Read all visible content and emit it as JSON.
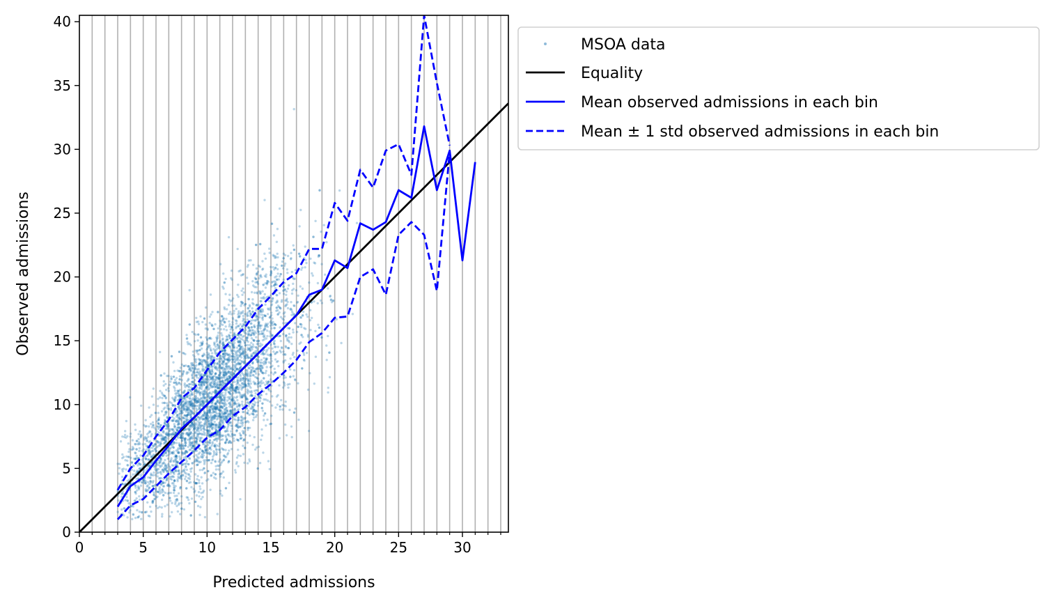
{
  "chart_data": {
    "type": "scatter",
    "title": "",
    "xlabel": "Predicted admissions",
    "ylabel": "Observed admissions",
    "xlim": [
      0,
      33.6
    ],
    "ylim": [
      0,
      40.5
    ],
    "xticks": [
      0,
      5,
      10,
      15,
      20,
      25,
      30
    ],
    "yticks": [
      0,
      5,
      10,
      15,
      20,
      25,
      30,
      35,
      40
    ],
    "vertical_gridlines": [
      1,
      2,
      3,
      4,
      5,
      6,
      7,
      8,
      9,
      10,
      11,
      12,
      13,
      14,
      15,
      16,
      17,
      18,
      19,
      20,
      21,
      22,
      23,
      24,
      25,
      26,
      27,
      28,
      29,
      30,
      31,
      32,
      33
    ],
    "legend_position": "outside-right-top",
    "colors": {
      "scatter": "#1f77b4",
      "equality": "#000000",
      "mean": "#0000ff",
      "grid": "#b0b0b0"
    },
    "series": [
      {
        "name": "MSOA data",
        "kind": "scatter",
        "n_points": 4500,
        "description_of_distribution": "bin centers 3-31, observed values near the equality line with spread roughly proportional to sqrt(x)"
      },
      {
        "name": "Equality",
        "kind": "line",
        "x": [
          0,
          33.6
        ],
        "y": [
          0,
          33.6
        ]
      },
      {
        "name": "Mean observed admissions in each bin",
        "kind": "line",
        "x": [
          3,
          4,
          5,
          6,
          7,
          8,
          9,
          10,
          11,
          12,
          13,
          14,
          15,
          16,
          17,
          18,
          19,
          20,
          21,
          22,
          23,
          24,
          25,
          26,
          27,
          28,
          29,
          30,
          31
        ],
        "y": [
          2.0,
          3.6,
          4.3,
          5.6,
          6.8,
          8.1,
          9.0,
          10.0,
          11.0,
          12.0,
          13.0,
          14.0,
          15.0,
          16.0,
          17.0,
          18.6,
          19.0,
          21.3,
          20.7,
          24.2,
          23.7,
          24.3,
          26.8,
          26.2,
          31.8,
          26.8,
          29.9,
          21.3,
          29.0
        ]
      },
      {
        "name": "Mean + 1 std observed admissions in each bin",
        "kind": "line-dashed",
        "x": [
          3,
          4,
          5,
          6,
          7,
          8,
          9,
          10,
          11,
          12,
          13,
          14,
          15,
          16,
          17,
          18,
          19,
          20,
          21,
          22,
          23,
          24,
          25,
          26,
          27,
          28,
          29
        ],
        "y": [
          3.3,
          5.0,
          6.0,
          7.5,
          8.8,
          10.5,
          11.3,
          12.7,
          14.1,
          15.1,
          16.1,
          17.5,
          18.5,
          19.6,
          20.3,
          22.2,
          22.2,
          25.8,
          24.4,
          28.4,
          27.0,
          29.9,
          30.4,
          28.0,
          40.5,
          35.2,
          30.3
        ]
      },
      {
        "name": "Mean - 1 std observed admissions in each bin",
        "kind": "line-dashed",
        "x": [
          3,
          4,
          5,
          6,
          7,
          8,
          9,
          10,
          11,
          12,
          13,
          14,
          15,
          16,
          17,
          18,
          19,
          20,
          21,
          22,
          23,
          24,
          25,
          26,
          27,
          28,
          29
        ],
        "y": [
          1.0,
          2.1,
          2.6,
          3.6,
          4.6,
          5.5,
          6.4,
          7.4,
          8.0,
          9.1,
          9.8,
          10.8,
          11.6,
          12.5,
          13.5,
          14.9,
          15.6,
          16.8,
          16.9,
          20.0,
          20.6,
          18.6,
          23.3,
          24.3,
          23.3,
          18.9,
          29.8
        ]
      }
    ],
    "legend": [
      {
        "label": "MSOA data",
        "marker": "scatter"
      },
      {
        "label": "Equality",
        "marker": "line-black"
      },
      {
        "label": "Mean observed admissions in each bin",
        "marker": "line-blue"
      },
      {
        "label": "Mean ± 1 std observed admissions in each bin",
        "marker": "line-blue-dashed"
      }
    ]
  }
}
